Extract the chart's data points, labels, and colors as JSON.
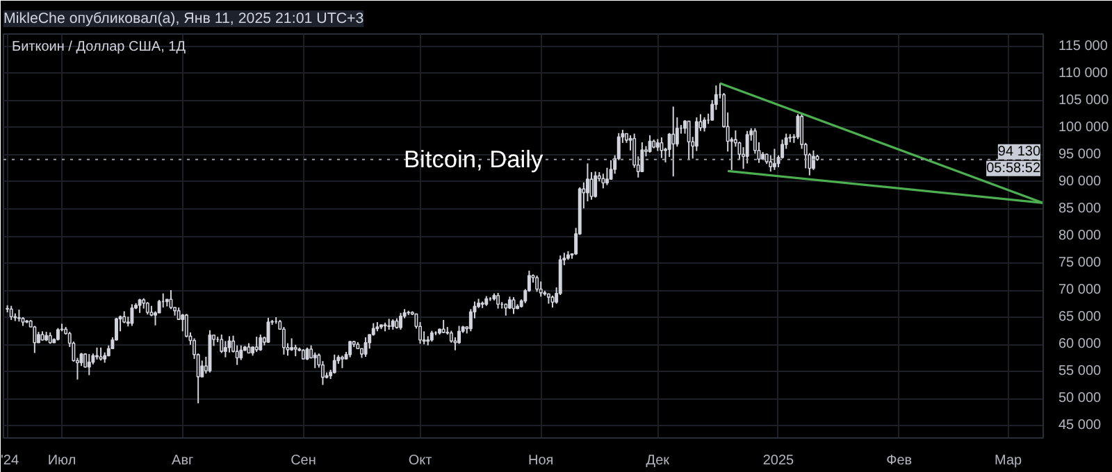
{
  "chart_data": {
    "type": "candlestick",
    "title": "Биткоин / Доллар США, 1Д",
    "subtitle": "MikleChe опубликовал(а), Янв 11, 2025 21:01 UTC+3",
    "annotations": [
      "Bitcoin, Daily",
      "05:58:52"
    ],
    "xlim": [
      "2024-06-16",
      "2025-03-10"
    ],
    "ylim": [
      42700,
      117300
    ],
    "xticks": [
      {
        "value": "2024-06-17",
        "label": "'24"
      },
      {
        "value": "2024-07-01",
        "label": "Июл"
      },
      {
        "value": "2024-08-01",
        "label": "Авг"
      },
      {
        "value": "2024-09-01",
        "label": "Сен"
      },
      {
        "value": "2024-10-01",
        "label": "Окт"
      },
      {
        "value": "2024-11-01",
        "label": "Ноя"
      },
      {
        "value": "2024-12-01",
        "label": "Дек"
      },
      {
        "value": "2025-01-01",
        "label": "2025"
      },
      {
        "value": "2025-02-01",
        "label": "Фев"
      },
      {
        "value": "2025-03-01",
        "label": "Мар"
      }
    ],
    "yticks": [
      {
        "value": 45000,
        "label": "45 000"
      },
      {
        "value": 50000,
        "label": "50 000"
      },
      {
        "value": 55000,
        "label": "55 000"
      },
      {
        "value": 60000,
        "label": "60 000"
      },
      {
        "value": 65000,
        "label": "65 000"
      },
      {
        "value": 70000,
        "label": "70 000"
      },
      {
        "value": 75000,
        "label": "75 000"
      },
      {
        "value": 80000,
        "label": "80 000"
      },
      {
        "value": 85000,
        "label": "85 000"
      },
      {
        "value": 90000,
        "label": "90 000"
      },
      {
        "value": 95000,
        "label": "95 000"
      },
      {
        "value": 100000,
        "label": "100 000"
      },
      {
        "value": 105000,
        "label": "105 000"
      },
      {
        "value": 110000,
        "label": "110 000"
      },
      {
        "value": 115000,
        "label": "115 000"
      }
    ],
    "grid": true,
    "ref_lines": [
      {
        "axis": "y",
        "value": 94130,
        "label": "94 130",
        "line_style": "dotted",
        "color": "#9598a1"
      }
    ],
    "x": [
      "2024-06-17",
      "2024-06-18",
      "2024-06-19",
      "2024-06-20",
      "2024-06-21",
      "2024-06-22",
      "2024-06-23",
      "2024-06-24",
      "2024-06-25",
      "2024-06-26",
      "2024-06-27",
      "2024-06-28",
      "2024-06-29",
      "2024-06-30",
      "2024-07-01",
      "2024-07-02",
      "2024-07-03",
      "2024-07-04",
      "2024-07-05",
      "2024-07-06",
      "2024-07-07",
      "2024-07-08",
      "2024-07-09",
      "2024-07-10",
      "2024-07-11",
      "2024-07-12",
      "2024-07-13",
      "2024-07-14",
      "2024-07-15",
      "2024-07-16",
      "2024-07-17",
      "2024-07-18",
      "2024-07-19",
      "2024-07-20",
      "2024-07-21",
      "2024-07-22",
      "2024-07-23",
      "2024-07-24",
      "2024-07-25",
      "2024-07-26",
      "2024-07-27",
      "2024-07-28",
      "2024-07-29",
      "2024-07-30",
      "2024-07-31",
      "2024-08-01",
      "2024-08-02",
      "2024-08-03",
      "2024-08-04",
      "2024-08-05",
      "2024-08-06",
      "2024-08-07",
      "2024-08-08",
      "2024-08-09",
      "2024-08-10",
      "2024-08-11",
      "2024-08-12",
      "2024-08-13",
      "2024-08-14",
      "2024-08-15",
      "2024-08-16",
      "2024-08-17",
      "2024-08-18",
      "2024-08-19",
      "2024-08-20",
      "2024-08-21",
      "2024-08-22",
      "2024-08-23",
      "2024-08-24",
      "2024-08-25",
      "2024-08-26",
      "2024-08-27",
      "2024-08-28",
      "2024-08-29",
      "2024-08-30",
      "2024-08-31",
      "2024-09-01",
      "2024-09-02",
      "2024-09-03",
      "2024-09-04",
      "2024-09-05",
      "2024-09-06",
      "2024-09-07",
      "2024-09-08",
      "2024-09-09",
      "2024-09-10",
      "2024-09-11",
      "2024-09-12",
      "2024-09-13",
      "2024-09-14",
      "2024-09-15",
      "2024-09-16",
      "2024-09-17",
      "2024-09-18",
      "2024-09-19",
      "2024-09-20",
      "2024-09-21",
      "2024-09-22",
      "2024-09-23",
      "2024-09-24",
      "2024-09-25",
      "2024-09-26",
      "2024-09-27",
      "2024-09-28",
      "2024-09-29",
      "2024-09-30",
      "2024-10-01",
      "2024-10-02",
      "2024-10-03",
      "2024-10-04",
      "2024-10-05",
      "2024-10-06",
      "2024-10-07",
      "2024-10-08",
      "2024-10-09",
      "2024-10-10",
      "2024-10-11",
      "2024-10-12",
      "2024-10-13",
      "2024-10-14",
      "2024-10-15",
      "2024-10-16",
      "2024-10-17",
      "2024-10-18",
      "2024-10-19",
      "2024-10-20",
      "2024-10-21",
      "2024-10-22",
      "2024-10-23",
      "2024-10-24",
      "2024-10-25",
      "2024-10-26",
      "2024-10-27",
      "2024-10-28",
      "2024-10-29",
      "2024-10-30",
      "2024-10-31",
      "2024-11-01",
      "2024-11-02",
      "2024-11-03",
      "2024-11-04",
      "2024-11-05",
      "2024-11-06",
      "2024-11-07",
      "2024-11-08",
      "2024-11-09",
      "2024-11-10",
      "2024-11-11",
      "2024-11-12",
      "2024-11-13",
      "2024-11-14",
      "2024-11-15",
      "2024-11-16",
      "2024-11-17",
      "2024-11-18",
      "2024-11-19",
      "2024-11-20",
      "2024-11-21",
      "2024-11-22",
      "2024-11-23",
      "2024-11-24",
      "2024-11-25",
      "2024-11-26",
      "2024-11-27",
      "2024-11-28",
      "2024-11-29",
      "2024-11-30",
      "2024-12-01",
      "2024-12-02",
      "2024-12-03",
      "2024-12-04",
      "2024-12-05",
      "2024-12-06",
      "2024-12-07",
      "2024-12-08",
      "2024-12-09",
      "2024-12-10",
      "2024-12-11",
      "2024-12-12",
      "2024-12-13",
      "2024-12-14",
      "2024-12-15",
      "2024-12-16",
      "2024-12-17",
      "2024-12-18",
      "2024-12-19",
      "2024-12-20",
      "2024-12-21",
      "2024-12-22",
      "2024-12-23",
      "2024-12-24",
      "2024-12-25",
      "2024-12-26",
      "2024-12-27",
      "2024-12-28",
      "2024-12-29",
      "2024-12-30",
      "2024-12-31",
      "2025-01-01",
      "2025-01-02",
      "2025-01-03",
      "2025-01-04",
      "2025-01-05",
      "2025-01-06",
      "2025-01-07",
      "2025-01-08",
      "2025-01-09",
      "2025-01-10",
      "2025-01-11"
    ],
    "ohlc": [
      [
        66600,
        67200,
        65900,
        66500
      ],
      [
        66500,
        67100,
        64500,
        65100
      ],
      [
        65100,
        65700,
        64300,
        64900
      ],
      [
        64900,
        66400,
        64200,
        64800
      ],
      [
        64800,
        65000,
        63400,
        64100
      ],
      [
        64100,
        64500,
        63900,
        64300
      ],
      [
        64300,
        64500,
        63200,
        63200
      ],
      [
        63200,
        63400,
        58400,
        60300
      ],
      [
        60300,
        62300,
        60300,
        61800
      ],
      [
        61800,
        62400,
        60700,
        60800
      ],
      [
        60800,
        62300,
        60600,
        61600
      ],
      [
        61600,
        62200,
        60100,
        60300
      ],
      [
        60300,
        61100,
        60300,
        60900
      ],
      [
        60900,
        63000,
        60700,
        62700
      ],
      [
        62700,
        63800,
        62400,
        62800
      ],
      [
        62800,
        63200,
        61800,
        62000
      ],
      [
        62000,
        62300,
        59500,
        60200
      ],
      [
        60200,
        60500,
        56800,
        57000
      ],
      [
        57000,
        57500,
        53500,
        56600
      ],
      [
        56600,
        58400,
        56000,
        58200
      ],
      [
        58200,
        58300,
        55700,
        55800
      ],
      [
        55800,
        58200,
        54300,
        56700
      ],
      [
        56700,
        58300,
        56300,
        57900
      ],
      [
        57900,
        59400,
        57200,
        57700
      ],
      [
        57700,
        59400,
        57000,
        57300
      ],
      [
        57300,
        58500,
        56600,
        57900
      ],
      [
        57900,
        59800,
        57800,
        59200
      ],
      [
        59200,
        61300,
        59200,
        60800
      ],
      [
        60800,
        64900,
        60700,
        64700
      ],
      [
        64700,
        65300,
        62400,
        65100
      ],
      [
        65100,
        66100,
        63900,
        64100
      ],
      [
        64100,
        65100,
        63300,
        63900
      ],
      [
        63900,
        67400,
        63400,
        66700
      ],
      [
        66700,
        67600,
        66500,
        67200
      ],
      [
        67200,
        68400,
        65800,
        68200
      ],
      [
        68200,
        68500,
        66600,
        67600
      ],
      [
        67600,
        67800,
        65500,
        65900
      ],
      [
        65900,
        67100,
        65200,
        65400
      ],
      [
        65400,
        66100,
        63500,
        65800
      ],
      [
        65800,
        68200,
        65800,
        67900
      ],
      [
        67900,
        69400,
        66800,
        67900
      ],
      [
        67900,
        68300,
        67000,
        68300
      ],
      [
        68300,
        70000,
        66500,
        66800
      ],
      [
        66800,
        66900,
        65300,
        66200
      ],
      [
        66200,
        66800,
        64500,
        64600
      ],
      [
        64600,
        65600,
        62400,
        65400
      ],
      [
        65400,
        65600,
        61300,
        61500
      ],
      [
        61500,
        62200,
        59900,
        60700
      ],
      [
        60700,
        61100,
        57300,
        58100
      ],
      [
        58100,
        58300,
        49100,
        54000
      ],
      [
        54000,
        57000,
        54000,
        56000
      ],
      [
        56000,
        57700,
        54600,
        55100
      ],
      [
        55100,
        62600,
        54800,
        61700
      ],
      [
        61700,
        61700,
        59700,
        60900
      ],
      [
        60900,
        61400,
        60400,
        60900
      ],
      [
        60900,
        61800,
        58400,
        58700
      ],
      [
        58700,
        60600,
        57600,
        59400
      ],
      [
        59400,
        61500,
        58500,
        60600
      ],
      [
        60600,
        61600,
        58500,
        58700
      ],
      [
        58700,
        59800,
        56200,
        57500
      ],
      [
        57500,
        59800,
        57100,
        58900
      ],
      [
        58900,
        59700,
        58800,
        59500
      ],
      [
        59500,
        60200,
        58400,
        58400
      ],
      [
        58400,
        59600,
        57900,
        59500
      ],
      [
        59500,
        61400,
        58600,
        59000
      ],
      [
        59000,
        61800,
        58800,
        61200
      ],
      [
        61200,
        61400,
        59800,
        60400
      ],
      [
        60400,
        64900,
        60300,
        64100
      ],
      [
        64100,
        64500,
        63600,
        64200
      ],
      [
        64200,
        65000,
        63800,
        64200
      ],
      [
        64200,
        64500,
        62800,
        62800
      ],
      [
        62800,
        63200,
        58100,
        59400
      ],
      [
        59400,
        60200,
        57900,
        59000
      ],
      [
        59000,
        61100,
        58800,
        59400
      ],
      [
        59400,
        59900,
        57800,
        59100
      ],
      [
        59100,
        59400,
        58700,
        58900
      ],
      [
        58900,
        59100,
        57200,
        57300
      ],
      [
        57300,
        59400,
        57100,
        59100
      ],
      [
        59100,
        59800,
        57400,
        57500
      ],
      [
        57500,
        58500,
        55600,
        58000
      ],
      [
        58000,
        58300,
        55700,
        56200
      ],
      [
        56200,
        56900,
        52500,
        53900
      ],
      [
        53900,
        54800,
        53700,
        54200
      ],
      [
        54200,
        55300,
        53600,
        54800
      ],
      [
        54800,
        58100,
        54600,
        57000
      ],
      [
        57000,
        58000,
        56400,
        57600
      ],
      [
        57600,
        57900,
        55600,
        57300
      ],
      [
        57300,
        58600,
        57300,
        58100
      ],
      [
        58100,
        60600,
        57600,
        60500
      ],
      [
        60500,
        60600,
        59500,
        60000
      ],
      [
        60000,
        60400,
        59200,
        59200
      ],
      [
        59200,
        59200,
        57500,
        58200
      ],
      [
        58200,
        61300,
        57700,
        60300
      ],
      [
        60300,
        61800,
        59200,
        61800
      ],
      [
        61800,
        63900,
        61600,
        62900
      ],
      [
        62900,
        64100,
        62400,
        63200
      ],
      [
        63200,
        63600,
        62800,
        63600
      ],
      [
        63600,
        64000,
        62400,
        63400
      ],
      [
        63400,
        64700,
        62700,
        63300
      ],
      [
        63300,
        64600,
        62700,
        64300
      ],
      [
        64300,
        64800,
        62900,
        63100
      ],
      [
        63100,
        65800,
        62700,
        65200
      ],
      [
        65200,
        66500,
        64800,
        65800
      ],
      [
        65800,
        66200,
        65400,
        65900
      ],
      [
        65900,
        66100,
        65400,
        65600
      ],
      [
        65600,
        65600,
        62900,
        63300
      ],
      [
        63300,
        64100,
        60100,
        60800
      ],
      [
        60800,
        62400,
        60000,
        60600
      ],
      [
        60600,
        61500,
        59800,
        60800
      ],
      [
        60800,
        62500,
        60500,
        62100
      ],
      [
        62100,
        62400,
        61700,
        62100
      ],
      [
        62100,
        62900,
        61800,
        62800
      ],
      [
        62800,
        64500,
        62100,
        62200
      ],
      [
        62200,
        63200,
        61800,
        62100
      ],
      [
        62100,
        62500,
        60300,
        60600
      ],
      [
        60600,
        61300,
        58900,
        60300
      ],
      [
        60300,
        63400,
        60100,
        62400
      ],
      [
        62400,
        63400,
        62100,
        63200
      ],
      [
        63200,
        63300,
        62000,
        62900
      ],
      [
        62900,
        66500,
        62400,
        66000
      ],
      [
        66000,
        67900,
        64800,
        67000
      ],
      [
        67000,
        68400,
        66700,
        67600
      ],
      [
        67600,
        67900,
        66700,
        67400
      ],
      [
        67400,
        68900,
        67100,
        68400
      ],
      [
        68400,
        68700,
        68000,
        68400
      ],
      [
        68400,
        69400,
        68100,
        69000
      ],
      [
        69000,
        69500,
        66600,
        67400
      ],
      [
        67400,
        67800,
        66600,
        67400
      ],
      [
        67400,
        67500,
        65300,
        66700
      ],
      [
        66700,
        68800,
        66500,
        68200
      ],
      [
        68200,
        68700,
        65600,
        66600
      ],
      [
        66600,
        67400,
        66500,
        67000
      ],
      [
        67000,
        68300,
        66800,
        68000
      ],
      [
        68000,
        70200,
        67600,
        69900
      ],
      [
        69900,
        73600,
        69700,
        72700
      ],
      [
        72700,
        72900,
        71400,
        72300
      ],
      [
        72300,
        72700,
        69700,
        70200
      ],
      [
        70200,
        71600,
        68800,
        69500
      ],
      [
        69500,
        69900,
        69000,
        69300
      ],
      [
        69300,
        69400,
        67500,
        68700
      ],
      [
        68700,
        69000,
        66800,
        67800
      ],
      [
        67800,
        70500,
        67500,
        69400
      ],
      [
        69400,
        76400,
        69100,
        75600
      ],
      [
        75600,
        76900,
        74600,
        75900
      ],
      [
        75900,
        77200,
        75600,
        76500
      ],
      [
        76500,
        76800,
        75800,
        76700
      ],
      [
        76700,
        81500,
        76500,
        80400
      ],
      [
        80400,
        89000,
        80200,
        88700
      ],
      [
        88700,
        89900,
        85100,
        88000
      ],
      [
        88000,
        93400,
        86400,
        90500
      ],
      [
        90500,
        91800,
        86700,
        87300
      ],
      [
        87300,
        91900,
        87100,
        91100
      ],
      [
        91100,
        91800,
        90100,
        90600
      ],
      [
        90600,
        91500,
        88800,
        89800
      ],
      [
        89800,
        92600,
        89400,
        90500
      ],
      [
        90500,
        94000,
        90400,
        92300
      ],
      [
        92300,
        94900,
        91500,
        94300
      ],
      [
        94300,
        99000,
        94000,
        98300
      ],
      [
        98300,
        99600,
        97200,
        98900
      ],
      [
        98900,
        98900,
        97200,
        97700
      ],
      [
        97700,
        98600,
        95800,
        98000
      ],
      [
        98000,
        98900,
        92600,
        93100
      ],
      [
        93100,
        94700,
        90800,
        91900
      ],
      [
        91900,
        97300,
        91900,
        95900
      ],
      [
        95900,
        96600,
        94700,
        95600
      ],
      [
        95600,
        98600,
        95400,
        97500
      ],
      [
        97500,
        97800,
        96200,
        96400
      ],
      [
        96400,
        97900,
        95700,
        97200
      ],
      [
        97200,
        98200,
        94400,
        95800
      ],
      [
        95800,
        96300,
        93600,
        96000
      ],
      [
        96000,
        99000,
        94600,
        98800
      ],
      [
        98800,
        103900,
        91000,
        97000
      ],
      [
        97000,
        101900,
        96500,
        99900
      ],
      [
        99900,
        100500,
        98900,
        99900
      ],
      [
        99900,
        101400,
        98900,
        101200
      ],
      [
        101200,
        101200,
        94200,
        97400
      ],
      [
        97400,
        98300,
        94300,
        96600
      ],
      [
        96600,
        101900,
        95700,
        101100
      ],
      [
        101100,
        102500,
        99400,
        100000
      ],
      [
        100000,
        101900,
        99300,
        101400
      ],
      [
        101400,
        102600,
        100700,
        101400
      ],
      [
        101400,
        105100,
        101300,
        104300
      ],
      [
        104300,
        107800,
        103300,
        106100
      ],
      [
        106100,
        108200,
        105400,
        106100
      ],
      [
        106100,
        106400,
        100000,
        100200
      ],
      [
        100200,
        102800,
        95600,
        97500
      ],
      [
        97500,
        98200,
        92200,
        97800
      ],
      [
        97800,
        99500,
        96500,
        97200
      ],
      [
        97200,
        97400,
        94200,
        95100
      ],
      [
        95100,
        96400,
        92400,
        94700
      ],
      [
        94700,
        99400,
        93400,
        98700
      ],
      [
        98700,
        99900,
        97600,
        99400
      ],
      [
        99400,
        99900,
        95200,
        95800
      ],
      [
        95800,
        97300,
        93500,
        94200
      ],
      [
        94200,
        95500,
        94100,
        95100
      ],
      [
        95100,
        95200,
        93300,
        93700
      ],
      [
        93700,
        94900,
        91900,
        92800
      ],
      [
        92800,
        96100,
        92200,
        93400
      ],
      [
        93400,
        94900,
        92700,
        94500
      ],
      [
        94500,
        97800,
        94300,
        96900
      ],
      [
        96900,
        98900,
        96100,
        98100
      ],
      [
        98100,
        98800,
        97300,
        98200
      ],
      [
        98200,
        98800,
        97200,
        98300
      ],
      [
        98300,
        102500,
        97900,
        102100
      ],
      [
        102100,
        102700,
        96100,
        96900
      ],
      [
        96900,
        97200,
        92500,
        95000
      ],
      [
        95000,
        95300,
        91200,
        92500
      ],
      [
        92500,
        95800,
        92200,
        94700
      ],
      [
        94700,
        95000,
        93900,
        94130
      ]
    ],
    "series": [
      {
        "type": "line",
        "color": "#4caf50",
        "x": [
          "2024-12-17",
          "2025-03-10"
        ],
        "values": [
          108200,
          86100
        ]
      },
      {
        "type": "line",
        "color": "#4caf50",
        "x": [
          "2024-12-19",
          "2025-03-10"
        ],
        "values": [
          92000,
          86100
        ]
      }
    ]
  }
}
